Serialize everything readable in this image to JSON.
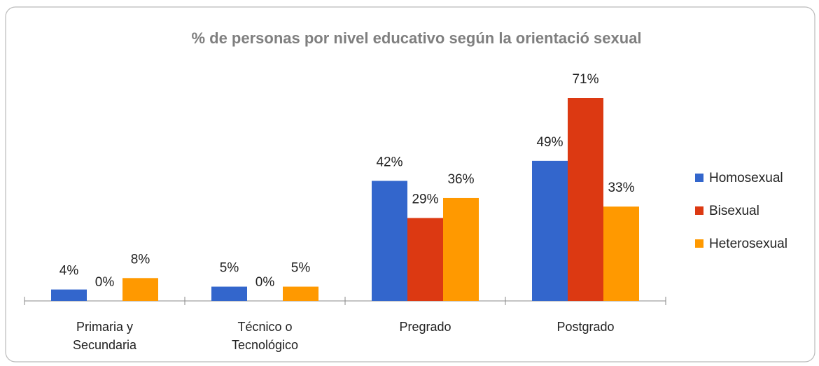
{
  "chart_data": {
    "type": "bar",
    "title": "% de personas  por nivel educativo según la orientació sexual",
    "categories": [
      "Primaria y Secundaria",
      "Técnico o Tecnológico",
      "Pregrado",
      "Postgrado"
    ],
    "series": [
      {
        "name": "Homosexual",
        "color": "#3366cc",
        "values": [
          4,
          5,
          42,
          49
        ],
        "value_labels": [
          "4%",
          "5%",
          "42%",
          "49%"
        ]
      },
      {
        "name": "Bisexual",
        "color": "#dc3912",
        "values": [
          0,
          0,
          29,
          71
        ],
        "value_labels": [
          "0%",
          "0%",
          "29%",
          "71%"
        ]
      },
      {
        "name": "Heterosexual",
        "color": "#ff9900",
        "values": [
          8,
          5,
          36,
          33
        ],
        "value_labels": [
          "8%",
          "5%",
          "36%",
          "33%"
        ]
      }
    ],
    "legend": "right"
  }
}
